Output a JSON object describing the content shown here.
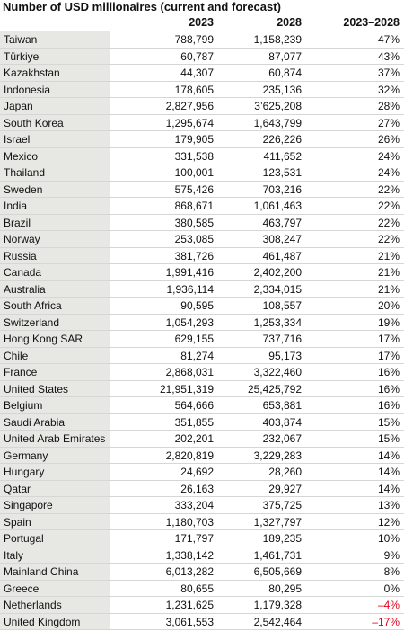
{
  "table": {
    "title": "Number of USD millionaires (current and forecast)",
    "columns": [
      "2023",
      "2028",
      "2023–2028"
    ],
    "negative_color": "#e3001b",
    "rows": [
      [
        "Taiwan",
        "788,799",
        "1,158,239",
        "47%"
      ],
      [
        "Türkiye",
        "60,787",
        "87,077",
        "43%"
      ],
      [
        "Kazakhstan",
        "44,307",
        "60,874",
        "37%"
      ],
      [
        "Indonesia",
        "178,605",
        "235,136",
        "32%"
      ],
      [
        "Japan",
        "2,827,956",
        "3’625,208",
        "28%"
      ],
      [
        "South Korea",
        "1,295,674",
        "1,643,799",
        "27%"
      ],
      [
        "Israel",
        "179,905",
        "226,226",
        "26%"
      ],
      [
        "Mexico",
        "331,538",
        "411,652",
        "24%"
      ],
      [
        "Thailand",
        "100,001",
        "123,531",
        "24%"
      ],
      [
        "Sweden",
        "575,426",
        "703,216",
        "22%"
      ],
      [
        "India",
        "868,671",
        "1,061,463",
        "22%"
      ],
      [
        "Brazil",
        "380,585",
        "463,797",
        "22%"
      ],
      [
        "Norway",
        "253,085",
        "308,247",
        "22%"
      ],
      [
        "Russia",
        "381,726",
        "461,487",
        "21%"
      ],
      [
        "Canada",
        "1,991,416",
        "2,402,200",
        "21%"
      ],
      [
        "Australia",
        "1,936,114",
        "2,334,015",
        "21%"
      ],
      [
        "South Africa",
        "90,595",
        "108,557",
        "20%"
      ],
      [
        "Switzerland",
        "1,054,293",
        "1,253,334",
        "19%"
      ],
      [
        "Hong Kong SAR",
        "629,155",
        "737,716",
        "17%"
      ],
      [
        "Chile",
        "81,274",
        "95,173",
        "17%"
      ],
      [
        "France",
        "2,868,031",
        "3,322,460",
        "16%"
      ],
      [
        "United States",
        "21,951,319",
        "25,425,792",
        "16%"
      ],
      [
        "Belgium",
        "564,666",
        "653,881",
        "16%"
      ],
      [
        "Saudi Arabia",
        "351,855",
        "403,874",
        "15%"
      ],
      [
        "United Arab Emirates",
        "202,201",
        "232,067",
        "15%"
      ],
      [
        "Germany",
        "2,820,819",
        "3,229,283",
        "14%"
      ],
      [
        "Hungary",
        "24,692",
        "28,260",
        "14%"
      ],
      [
        "Qatar",
        "26,163",
        "29,927",
        "14%"
      ],
      [
        "Singapore",
        "333,204",
        "375,725",
        "13%"
      ],
      [
        "Spain",
        "1,180,703",
        "1,327,797",
        "12%"
      ],
      [
        "Portugal",
        "171,797",
        "189,235",
        "10%"
      ],
      [
        "Italy",
        "1,338,142",
        "1,461,731",
        "9%"
      ],
      [
        "Mainland China",
        "6,013,282",
        "6,505,669",
        "8%"
      ],
      [
        "Greece",
        "80,655",
        "80,295",
        "0%"
      ],
      [
        "Netherlands",
        "1,231,625",
        "1,179,328",
        "–4%"
      ],
      [
        "United Kingdom",
        "3,061,553",
        "2,542,464",
        "–17%"
      ]
    ]
  }
}
